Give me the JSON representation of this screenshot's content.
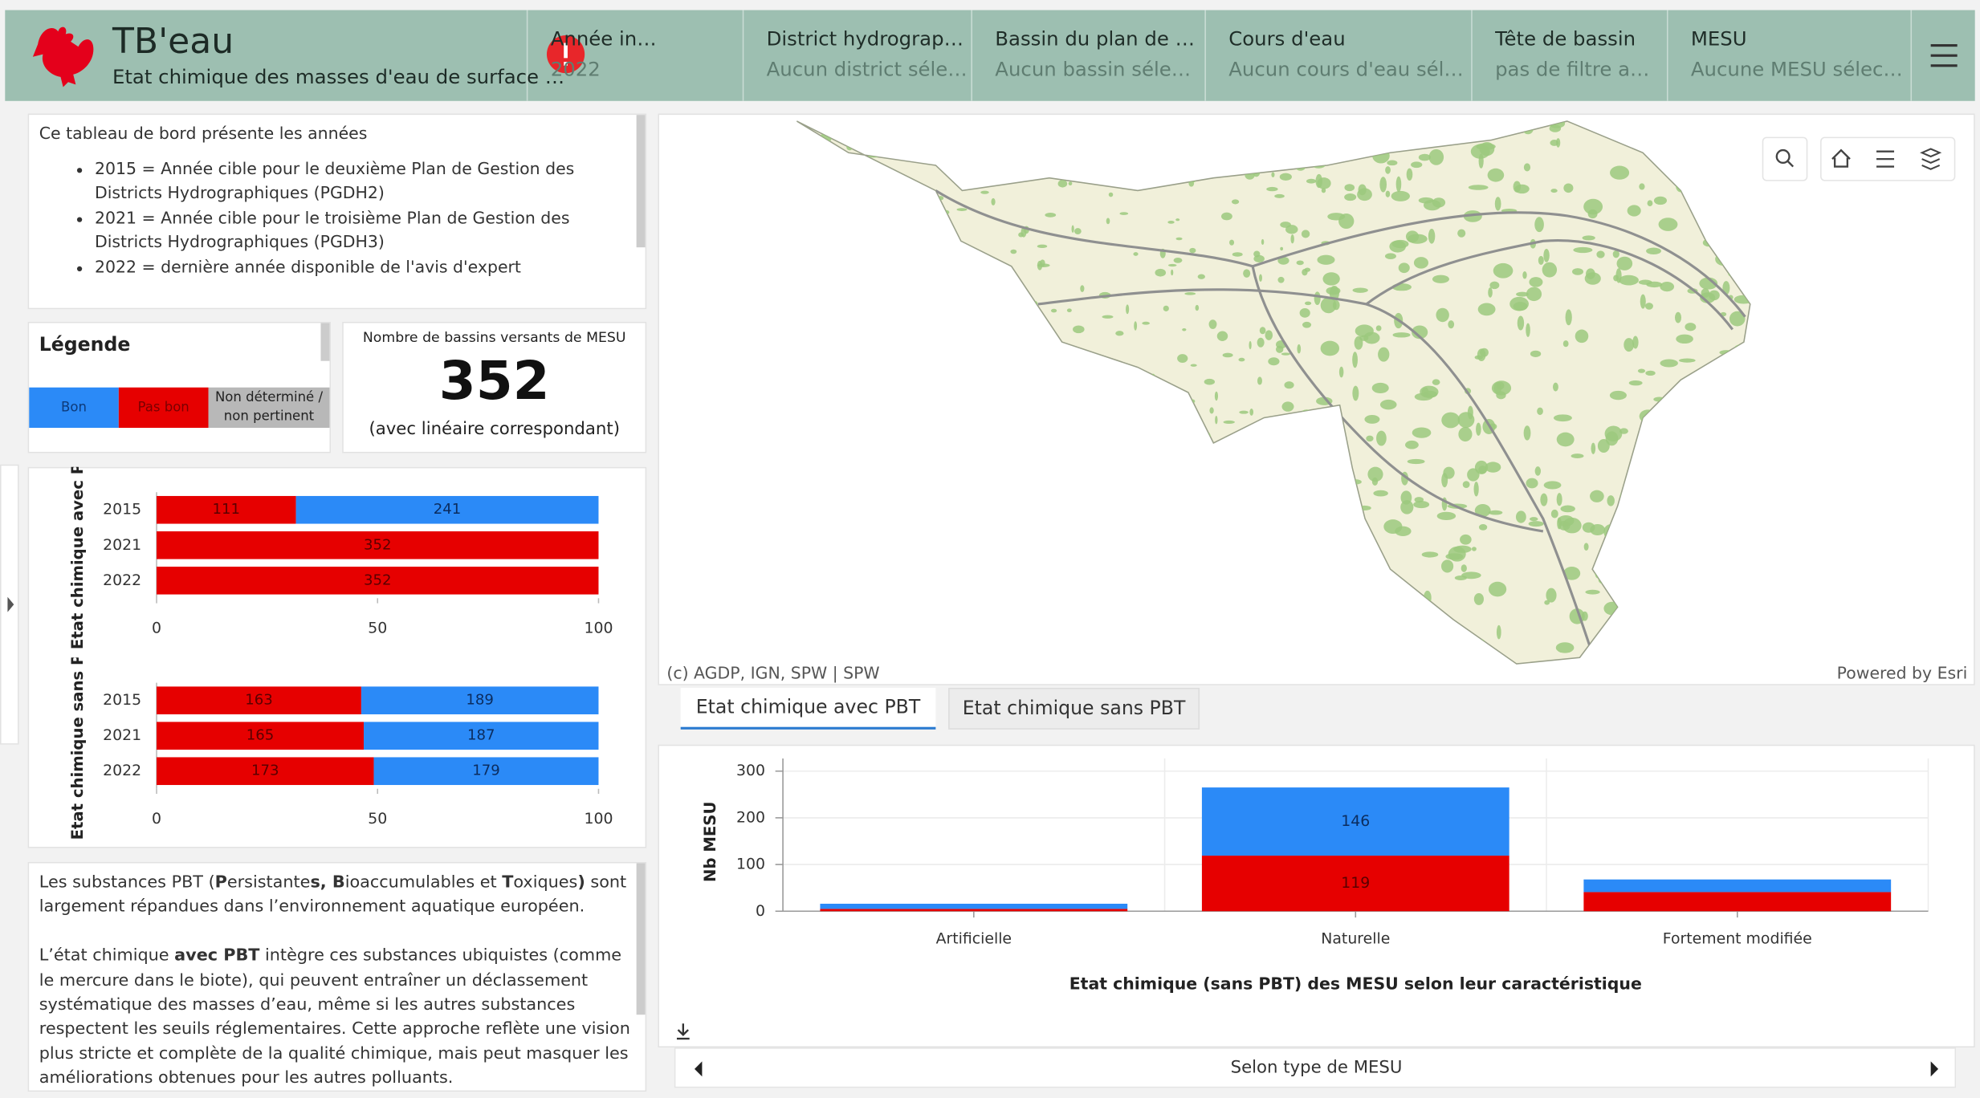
{
  "header": {
    "title": "TB'eau",
    "subtitle": "Etat chimique des masses d'eau de surface …"
  },
  "filters": [
    {
      "label": "Année in…",
      "value": "2022"
    },
    {
      "label": "District hydrograp…",
      "value": "Aucun district séle…"
    },
    {
      "label": "Bassin du plan de …",
      "value": "Aucun bassin séle…"
    },
    {
      "label": "Cours d'eau",
      "value": "Aucun cours d'eau sél…"
    },
    {
      "label": "Tête de bassin",
      "value": "pas de filtre a…"
    },
    {
      "label": "MESU",
      "value": "Aucune MESU sélec…"
    }
  ],
  "intro": {
    "text": "Ce tableau de bord présente les années",
    "items": [
      "2015 = Année cible pour le deuxième Plan de Gestion des Districts Hydrographiques (PGDH2)",
      "2021 = Année cible pour le troisième Plan de Gestion des Districts Hydrographiques (PGDH3)",
      "2022 = dernière année disponible de l'avis d'expert"
    ]
  },
  "legend": {
    "title": "Légende",
    "items": [
      {
        "label": "Bon",
        "color": "#2b8af7"
      },
      {
        "label": "Pas bon",
        "color": "#e60000"
      },
      {
        "label": "Non déterminé / non pertinent",
        "color": "#b8b8b8"
      }
    ]
  },
  "indicator": {
    "title": "Nombre de bassins versants de MESU",
    "value": 352,
    "caption": "(avec linéaire correspondant)"
  },
  "chart_data": [
    {
      "type": "hbar",
      "stack": "percent",
      "y_label": "Etat chimique avec PB",
      "categories": [
        "2015",
        "2021",
        "2022"
      ],
      "series": [
        {
          "color": "#e60000",
          "values": [
            111,
            352,
            352
          ]
        },
        {
          "color": "#2b8af7",
          "values": [
            241,
            0,
            0
          ]
        }
      ],
      "xlim": [
        0,
        100
      ],
      "xticks": [
        0,
        50,
        100
      ]
    },
    {
      "type": "hbar",
      "stack": "percent",
      "y_label": "Etat chimique sans PB",
      "categories": [
        "2015",
        "2021",
        "2022"
      ],
      "series": [
        {
          "color": "#e60000",
          "values": [
            163,
            165,
            173
          ]
        },
        {
          "color": "#2b8af7",
          "values": [
            189,
            187,
            179
          ]
        }
      ],
      "xlim": [
        0,
        100
      ],
      "xticks": [
        0,
        50,
        100
      ]
    },
    {
      "type": "vbar",
      "stack": "normal",
      "title": "Etat chimique (sans PBT) des MESU selon leur caractéristique",
      "y_label": "Nb MESU",
      "categories": [
        "Artificielle",
        "Naturelle",
        "Fortement modifiée"
      ],
      "series": [
        {
          "color": "#e60000",
          "values": [
            5,
            119,
            41
          ]
        },
        {
          "color": "#2b8af7",
          "values": [
            11,
            146,
            27
          ]
        }
      ],
      "ylim": [
        0,
        300
      ],
      "yticks": [
        0,
        100,
        200,
        300
      ],
      "grid": true
    }
  ],
  "pbt_text": [
    [
      {
        "text": "Les substances PBT ("
      },
      {
        "text": "P",
        "bold": true
      },
      {
        "text": "ersistante"
      },
      {
        "text": "s, B",
        "bold": true
      },
      {
        "text": "ioaccumulables et "
      },
      {
        "text": "T",
        "bold": true
      },
      {
        "text": "oxiques"
      },
      {
        "text": ")",
        "bold": true
      },
      {
        "text": " sont largement répandues dans l’environnement aquatique européen."
      }
    ],
    [
      {
        "text": "L’état chimique "
      },
      {
        "text": "avec PBT",
        "bold": true
      },
      {
        "text": " intègre ces substances ubiquistes (comme le mercure dans le biote), qui peuvent entraîner un déclassement systématique des masses d’eau, même si les autres substances respectent les seuils réglementaires. Cette approche reflète une vision plus stricte et complète de la qualité chimique, mais peut masquer les améliorations obtenues pour les autres polluants."
      }
    ]
  ],
  "map": {
    "attribution": "(c) AGDP, IGN, SPW | SPW",
    "powered": "Powered by Esri"
  },
  "tabs": [
    "Etat chimique avec PBT",
    "Etat chimique sans PBT"
  ],
  "nav": {
    "label": "Selon type de MESU"
  }
}
